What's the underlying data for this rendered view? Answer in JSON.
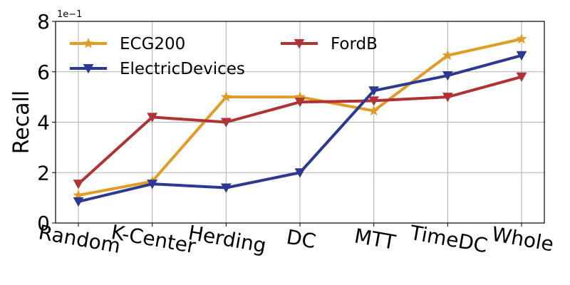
{
  "chart_data": {
    "type": "line",
    "categories": [
      "Random",
      "K-Center",
      "Herding",
      "DC",
      "MTT",
      "TimeDC",
      "Whole"
    ],
    "series": [
      {
        "name": "ECG200",
        "color": "#e09c27",
        "marker": "star",
        "values": [
          1.1,
          1.65,
          5.0,
          5.0,
          4.45,
          6.65,
          7.3
        ]
      },
      {
        "name": "FordB",
        "color": "#b03235",
        "marker": "triangle-down",
        "values": [
          1.55,
          4.2,
          4.0,
          4.8,
          4.85,
          5.0,
          5.8
        ]
      },
      {
        "name": "ElectricDevices",
        "color": "#2c3991",
        "marker": "triangle-down",
        "values": [
          0.85,
          1.55,
          1.4,
          2.0,
          5.25,
          5.85,
          6.65
        ]
      }
    ],
    "ylabel": "Recall",
    "xlabel": "",
    "title": "",
    "ylim": [
      0,
      8
    ],
    "yticks": [
      "0",
      "2",
      "4",
      "6",
      "8"
    ],
    "y_scale_label": "1e−1",
    "grid": true,
    "legend_placement": "top-left, two columns"
  }
}
